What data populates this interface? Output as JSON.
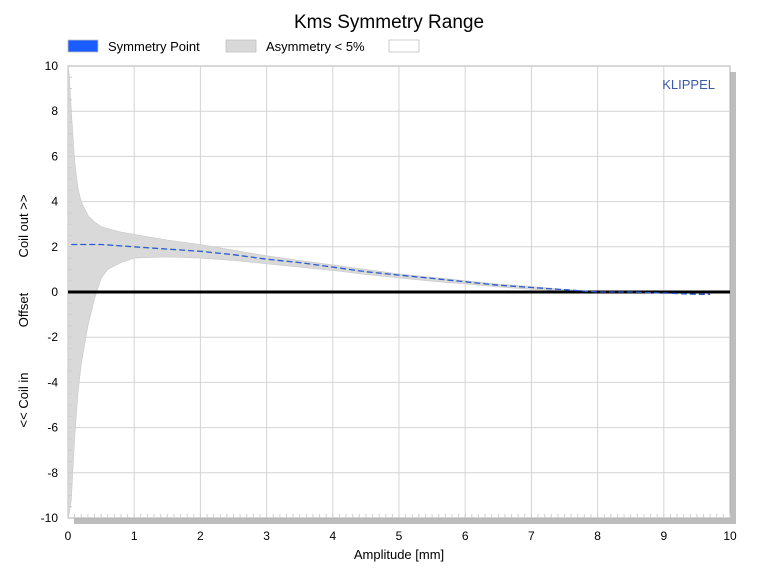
{
  "chart_data": {
    "type": "area",
    "title": "Kms Symmetry Range",
    "xlabel": "Amplitude [mm]",
    "ylabel_parts": [
      "<< Coil in",
      "Offset",
      "Coil out >>"
    ],
    "watermark": "KLIPPEL",
    "xlim": [
      0,
      10
    ],
    "ylim": [
      -10,
      10
    ],
    "x_ticks": [
      "0",
      "1",
      "2",
      "3",
      "4",
      "5",
      "6",
      "7",
      "8",
      "9",
      "10"
    ],
    "y_ticks": [
      "10",
      "8",
      "6",
      "4",
      "2",
      "0",
      "-2",
      "-4",
      "-6",
      "-8",
      "-10"
    ],
    "grid": true,
    "legend_position": "top-left",
    "legend": [
      {
        "label": "Symmetry Point",
        "color": "#1a5cff"
      },
      {
        "label": "Asymmetry < 5%",
        "color": "#d9d9d9"
      },
      {
        "label": "",
        "color": "#ffffff"
      }
    ],
    "series": [
      {
        "name": "Symmetry Point",
        "style": "dashed",
        "color": "#2a5bd0",
        "x": [
          0.05,
          0.5,
          1.0,
          1.5,
          2.0,
          2.5,
          3.0,
          3.5,
          4.0,
          4.5,
          5.0,
          5.5,
          6.0,
          6.5,
          7.0,
          7.5,
          8.0,
          8.5,
          9.0,
          9.5,
          9.7
        ],
        "y": [
          2.1,
          2.1,
          2.0,
          1.9,
          1.8,
          1.65,
          1.45,
          1.3,
          1.1,
          0.9,
          0.75,
          0.6,
          0.45,
          0.3,
          0.2,
          0.1,
          0.0,
          0.0,
          -0.05,
          -0.1,
          -0.1
        ]
      },
      {
        "name": "Asymmetry < 5%",
        "color": "#d9d9d9",
        "x": [
          0.0,
          0.02,
          0.05,
          0.1,
          0.15,
          0.2,
          0.3,
          0.4,
          0.5,
          0.6,
          0.8,
          1.0,
          1.5,
          2.0,
          2.5,
          3.0,
          3.5,
          4.0,
          4.5,
          5.0,
          5.5,
          6.0,
          6.5,
          7.0,
          7.5,
          7.8,
          8.0
        ],
        "upper": [
          10.0,
          9.6,
          8.0,
          5.8,
          4.6,
          4.0,
          3.4,
          3.1,
          2.9,
          2.8,
          2.65,
          2.55,
          2.3,
          2.1,
          1.85,
          1.6,
          1.4,
          1.2,
          1.0,
          0.8,
          0.65,
          0.5,
          0.35,
          0.25,
          0.12,
          0.05,
          0.0
        ],
        "lower": [
          -10.0,
          -9.8,
          -9.2,
          -6.5,
          -4.5,
          -3.2,
          -1.5,
          -0.3,
          0.6,
          1.0,
          1.3,
          1.5,
          1.55,
          1.5,
          1.4,
          1.25,
          1.1,
          0.95,
          0.78,
          0.62,
          0.48,
          0.36,
          0.22,
          0.12,
          0.05,
          0.0,
          0.0
        ]
      }
    ]
  }
}
